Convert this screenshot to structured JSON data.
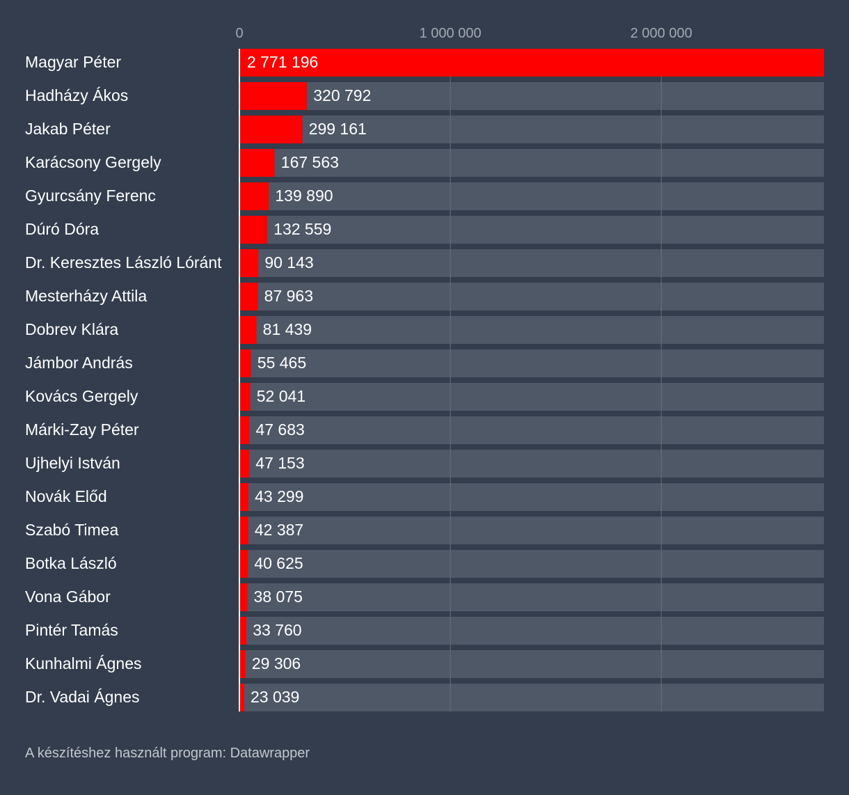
{
  "chart_data": {
    "type": "bar",
    "orientation": "horizontal",
    "categories": [
      "Magyar Péter",
      "Hadházy Ákos",
      "Jakab Péter",
      "Karácsony Gergely",
      "Gyurcsány Ferenc",
      "Dúró Dóra",
      "Dr. Keresztes László Lóránt",
      "Mesterházy Attila",
      "Dobrev Klára",
      "Jámbor András",
      "Kovács Gergely",
      "Márki-Zay Péter",
      "Ujhelyi István",
      "Novák Előd",
      "Szabó Timea",
      "Botka László",
      "Vona Gábor",
      "Pintér Tamás",
      "Kunhalmi Ágnes",
      "Dr. Vadai Ágnes"
    ],
    "values": [
      2771196,
      320792,
      299161,
      167563,
      139890,
      132559,
      90143,
      87963,
      81439,
      55465,
      52041,
      47683,
      47153,
      43299,
      42387,
      40625,
      38075,
      33760,
      29306,
      23039
    ],
    "value_labels": [
      "2 771 196",
      "320 792",
      "299 161",
      "167 563",
      "139 890",
      "132 559",
      "90 143",
      "87 963",
      "81 439",
      "55 465",
      "52 041",
      "47 683",
      "47 153",
      "43 299",
      "42 387",
      "40 625",
      "38 075",
      "33 760",
      "29 306",
      "23 039"
    ],
    "xlim": [
      0,
      2771196
    ],
    "x_ticks": [
      0,
      1000000,
      2000000
    ],
    "x_tick_labels": [
      "0",
      "1 000 000",
      "2 000 000"
    ],
    "x_axis_position": "top",
    "grid": true,
    "title": "",
    "xlabel": "",
    "ylabel": "",
    "colors": {
      "background": "#333d4d",
      "bar": "#ff0000",
      "track": "#4f5867",
      "gridline": "#67707e",
      "baseline": "#ffffff",
      "label_text": "#ffffff",
      "tick_text": "#a3a9b3"
    }
  },
  "footer": {
    "credit": "A készítéshez használt program: Datawrapper"
  }
}
